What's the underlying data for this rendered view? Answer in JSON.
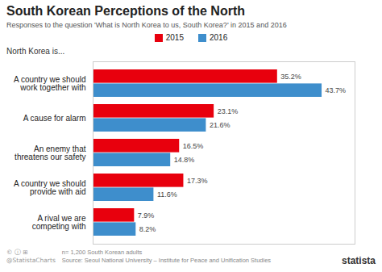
{
  "chart_data": {
    "type": "bar",
    "orientation": "horizontal",
    "title": "South Korean Perceptions of the North",
    "subtitle": "Responses to the question 'What is North Korea to us, South Korea?' in 2015 and 2016",
    "annotations": [
      "North Korea is...",
      "n= 1,200 South Korean adults",
      "Source: Seoul National University – Institute for Peace and Unification Studies",
      "statista",
      "© ⓘ ⊞",
      "@StatistaCharts"
    ],
    "categories": [
      "A country we should\nwork together with",
      "A cause for alarm",
      "An enemy that\nthreatens our safety",
      "A country we should\nprovide with aid",
      "A rival we are\ncompeting with"
    ],
    "series": [
      {
        "name": "2015",
        "color": "#e8000d",
        "values": [
          35.2,
          23.1,
          16.5,
          17.3,
          7.9
        ],
        "value_labels": [
          "35.2%",
          "23.1%",
          "16.5%",
          "17.3%",
          "7.9%"
        ]
      },
      {
        "name": "2016",
        "color": "#3e8ecc",
        "values": [
          43.7,
          21.6,
          14.8,
          11.6,
          8.2
        ],
        "value_labels": [
          "43.7%",
          "21.6%",
          "14.8%",
          "11.6%",
          "8.2%"
        ]
      }
    ],
    "xlim": [
      0,
      50
    ],
    "grid": false,
    "legend": "top",
    "data_labels": true,
    "tick_labels": "y"
  }
}
